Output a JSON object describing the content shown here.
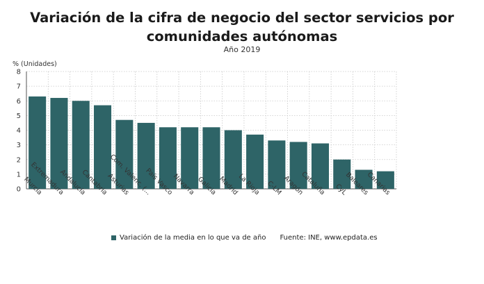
{
  "title": "Variación de la cifra de negocio del sector servicios por comunidades autónomas",
  "subtitle": "Año 2019",
  "source": "Fuente: INE, www.epdata.es",
  "colors": {
    "bar": "#2e6467",
    "grid": "#c8c8c8"
  },
  "chart_data": {
    "type": "bar",
    "ylabel": "% (Unidades)",
    "ylim": [
      0,
      8
    ],
    "yticks": [
      0,
      1,
      2,
      3,
      4,
      5,
      6,
      7,
      8
    ],
    "grid": true,
    "legend_position": "bottom",
    "categories": [
      "Murcia",
      "Extremadura",
      "Andalucía",
      "Cantabria",
      "Asturias",
      "Com. Valenc. (...",
      "País Vasco",
      "Navarra",
      "Galicia",
      "Madrid",
      "La Rioja",
      "C-LM",
      "Aragón",
      "Cataluña",
      "CyL",
      "Baleares",
      "Canarias"
    ],
    "series": [
      {
        "name": "Variación de la media en lo que va de año",
        "values": [
          6.3,
          6.2,
          6.0,
          5.7,
          4.7,
          4.5,
          4.2,
          4.2,
          4.2,
          4.0,
          3.7,
          3.3,
          3.2,
          3.1,
          2.0,
          1.3,
          1.2
        ]
      }
    ]
  }
}
